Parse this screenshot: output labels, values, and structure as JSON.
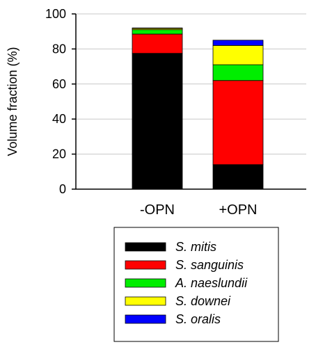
{
  "chart_data": {
    "type": "bar",
    "stacked": true,
    "categories": [
      "-OPN",
      "+OPN"
    ],
    "ylabel": "Volume fraction (%)",
    "ylim": [
      0,
      100
    ],
    "yticks": [
      0,
      20,
      40,
      60,
      80,
      100
    ],
    "grid": true,
    "legend_position": "bottom",
    "series": [
      {
        "name": "S. mitis",
        "color": "#000000",
        "values": [
          77.5,
          14
        ]
      },
      {
        "name": "S. sanguinis",
        "color": "#ff0000",
        "values": [
          11,
          48
        ]
      },
      {
        "name": "A. naeslundii",
        "color": "#00ee00",
        "values": [
          2.5,
          9
        ]
      },
      {
        "name": "S. downei",
        "color": "#ffff00",
        "values": [
          0.7,
          11
        ]
      },
      {
        "name": "S. oralis",
        "color": "#0000ff",
        "values": [
          0.3,
          3
        ]
      }
    ]
  }
}
